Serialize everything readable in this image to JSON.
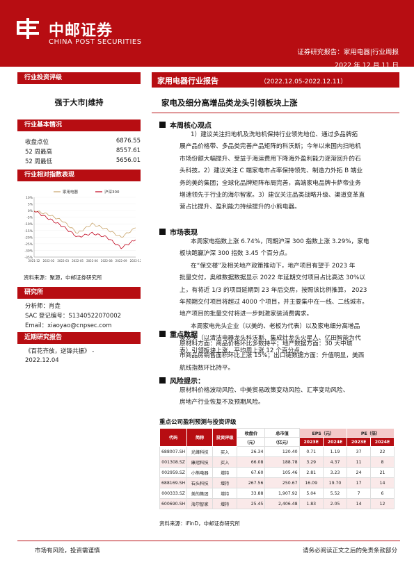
{
  "header": {
    "logo_cn": "中邮证券",
    "logo_en": "CHINA POST SECURITIES",
    "report_type": "证券研究报告：家用电器|行业周报",
    "date": "2022 年 12 月 11 日"
  },
  "left": {
    "rating_section": "行业投资评级",
    "rating": "强于大市|维持",
    "basics_section": "行业基本情况",
    "basics": [
      {
        "label": "收盘点位",
        "value": "6876.55"
      },
      {
        "label": "52 周最高",
        "value": "8557.61"
      },
      {
        "label": "52 周最低",
        "value": "5656.01"
      }
    ],
    "chart_section": "行业相对指数表现",
    "source": "资料来源：聚源，中邮证券研究所",
    "research_section": "研究所",
    "analyst": "分析师：肖垚",
    "license": "SAC 登记编号：S1340522070002",
    "email": "Email：xiaoyao@cnpsec.com",
    "recent_section": "近期研究报告",
    "recent_title": "《百花齐放，逆锋共振》 -",
    "recent_date": "2022.12.04"
  },
  "chart_data": {
    "type": "line",
    "title": "",
    "xlabel": "",
    "ylabel": "",
    "x": [
      "2021-12",
      "2022-02",
      "2022-03",
      "2022-05",
      "2022-06",
      "2022-08",
      "2022-09",
      "2022-12"
    ],
    "ylim": [
      -35,
      10
    ],
    "yticks": [
      "10%",
      "5%",
      "0%",
      "-5%",
      "-10%",
      "-15%",
      "-20%",
      "-25%",
      "-30%",
      "-35%"
    ],
    "series": [
      {
        "name": "家用电器",
        "color": "#c8a46a",
        "values": [
          0,
          -3,
          -8,
          -17,
          -10,
          -14,
          -20,
          -13
        ]
      },
      {
        "name": "沪深300",
        "color": "#c0001a",
        "values": [
          0,
          -6,
          -12,
          -20,
          -17,
          -20,
          -28,
          -22
        ]
      }
    ],
    "legend": "top"
  },
  "right": {
    "title": "家用电器行业报告",
    "period": "（2022.12.05-2022.12.11）",
    "headline": "家电及细分高增品类龙头引领板块上涨",
    "s1_head": "本周核心观点",
    "s1_lines": [
      "1）建议关注扫地机及洗地机保持行业领先地位、通过多品牌拓",
      "展产品价格带、多品类完善产品矩阵的科沃斯；今年以来国内扫地机",
      "市场份额大幅提升、受益于海运费用下降海外盈利能力逐渐回升的石",
      "头科技。2）建议关注 C 端家电市占率保持领先、制造力外拓 B 端业",
      "务的美的集团；全球化品牌矩阵布局完善，高端家电品牌卡萨帝业务",
      "增速领先于行业的海尔智家。3）建议关注品类战略升级、渠道变革直",
      "营占比提升、盈利能力持续提升的小熊电器。"
    ],
    "s2_head": "市场表现",
    "s2_lines": [
      "本周家电指数上涨 6.74%，同期沪深 300 指数上涨 3.29%，家电",
      "板块跑赢沪深 300 指数 3.45 个百分点。",
      "在“保交楼”及相关地产政策推动下，地产项目有望于 2023 年",
      "批量交付，奥维数据数据显示 2022 年延期交付项目占比高达 30%以",
      "上，有将近 1/3 的项目延期到 23 年后交房，按照该比例推算， 2023",
      "年预期交付项目将超过 4000 个项目，并主要集中在一线、二线城市。",
      "地产项目的批量交付将进一步刺激家装消费需求。",
      "本周家电先头企业（以美的、老板为代表）以及家电细分高增品",
      "类龙头（以清洁电器龙头科沃斯、集成灶龙头火星人、亿田智能为代",
      "表）引领板块上涨，平均周上涨 12 个百分点。"
    ],
    "s3_head": "重点数据",
    "s3_lines": [
      "原材料方面：商品价格环比多数持平；地产数据方面：30 大中城",
      "市商品房销售面积环比上涨 15%；出口链数据方面：升值明显，美西",
      "航线指数环比持平。"
    ],
    "s4_head": "风险提示：",
    "s4_lines": [
      "原材料价格波动风险、中美贸易政策变动风险、汇率变动风险、",
      "房地产行业恢复不及预期风险。"
    ]
  },
  "table": {
    "title": "重点公司盈利预测与投资评级",
    "headers": [
      "代码",
      "简称",
      "投资评级",
      "收盘价",
      "总市值",
      "EPS（元）",
      "PE（倍）"
    ],
    "units": [
      "（元）",
      "（亿元）"
    ],
    "sub_headers": [
      "2023E",
      "2024E",
      "2023E",
      "2024E"
    ],
    "rows": [
      [
        "688007.SH",
        "光峰科技",
        "买入",
        "26.34",
        "120.40",
        "0.71",
        "1.19",
        "37",
        "22"
      ],
      [
        "001308.SZ",
        "康冠科技",
        "买入",
        "66.08",
        "188.78",
        "3.29",
        "4.37",
        "11",
        "8"
      ],
      [
        "002959.SZ",
        "小熊电器",
        "增持",
        "67.60",
        "105.46",
        "2.81",
        "3.23",
        "24",
        "21"
      ],
      [
        "688169.SH",
        "石头科技",
        "增持",
        "267.56",
        "250.67",
        "16.09",
        "19.70",
        "17",
        "14"
      ],
      [
        "000333.SZ",
        "美的集团",
        "增持",
        "33.88",
        "1,907.92",
        "5.04",
        "5.52",
        "7",
        "6"
      ],
      [
        "600690.SH",
        "海尔智家",
        "增持",
        "25.45",
        "2,406.48",
        "1.83",
        "2.05",
        "14",
        "12"
      ]
    ],
    "source": "资料来源：iFinD，中邮证券研究所"
  },
  "footer": {
    "left": "市场有风险，投资需谨慎",
    "right": "请务必阅读正文之后的免责条款部分"
  }
}
